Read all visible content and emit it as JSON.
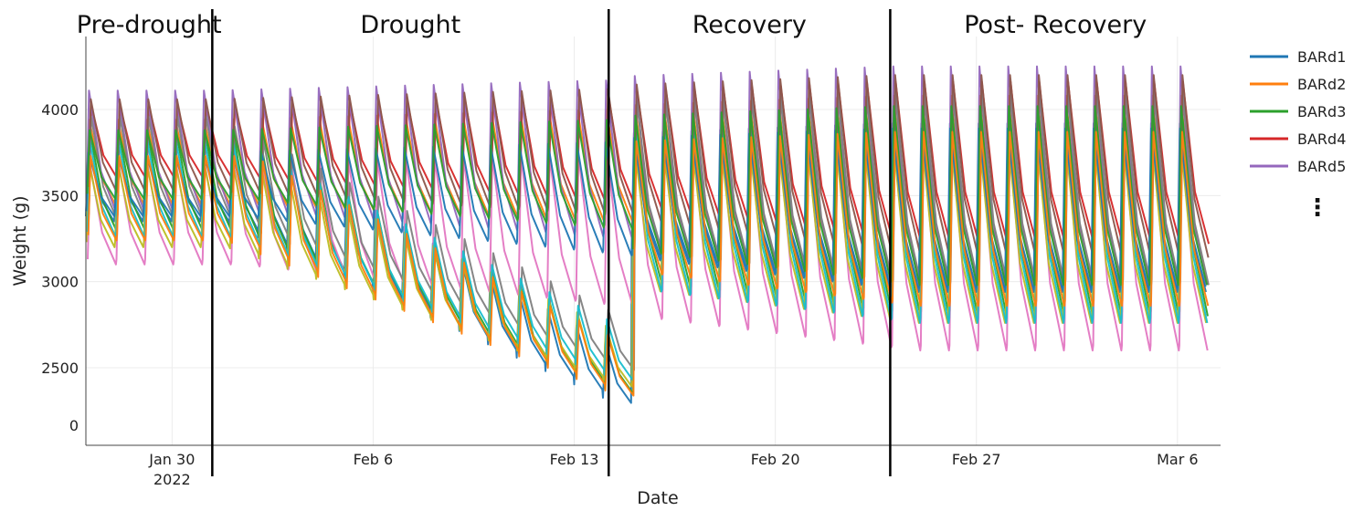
{
  "chart_data": {
    "type": "line",
    "xlabel": "Date",
    "ylabel": "Weight (g)",
    "yticks": [
      {
        "value": 0,
        "label": "0"
      },
      {
        "value": 2500,
        "label": "2500"
      },
      {
        "value": 3000,
        "label": "3000"
      },
      {
        "value": 3500,
        "label": "3500"
      },
      {
        "value": 4000,
        "label": "4000"
      }
    ],
    "xticks": [
      {
        "day": 30,
        "label": "Jan 30",
        "sublabel": "2022"
      },
      {
        "day": 37,
        "label": "Feb 6",
        "sublabel": ""
      },
      {
        "day": 44,
        "label": "Feb 13",
        "sublabel": ""
      },
      {
        "day": 51,
        "label": "Feb 20",
        "sublabel": ""
      },
      {
        "day": 58,
        "label": "Feb 27",
        "sublabel": ""
      },
      {
        "day": 65,
        "label": "Mar 6",
        "sublabel": ""
      }
    ],
    "x_range_days": [
      27.0,
      66.5
    ],
    "y_axis_note": "broken axis: 0 shown directly below 2500",
    "phases": [
      {
        "label": "Pre-drought",
        "start_day": 27.0,
        "end_day": 31.4
      },
      {
        "label": "Drought",
        "start_day": 31.4,
        "end_day": 45.2
      },
      {
        "label": "Recovery",
        "start_day": 45.2,
        "end_day": 55.0
      },
      {
        "label": "Post- Recovery",
        "start_day": 55.0,
        "end_day": 66.5
      }
    ],
    "legend": [
      {
        "name": "BARd1",
        "color": "#1f77b4"
      },
      {
        "name": "BARd2",
        "color": "#ff7f0e"
      },
      {
        "name": "BARd3",
        "color": "#2ca02c"
      },
      {
        "name": "BARd4",
        "color": "#d62728"
      },
      {
        "name": "BARd5",
        "color": "#9467bd"
      }
    ],
    "legend_more": "⋮",
    "series_overview": [
      {
        "name": "BARd1",
        "color": "#1f77b4",
        "drought_stressed": true,
        "peak_g": 3780,
        "trough_start_g": 3350,
        "trough_drought_end_g": 2280
      },
      {
        "name": "BARd2",
        "color": "#ff7f0e",
        "drought_stressed": false,
        "peak_g": 3940,
        "trough_start_g": 3450,
        "trough_drought_end_g": 3350
      },
      {
        "name": "BARd3",
        "color": "#2ca02c",
        "drought_stressed": true,
        "peak_g": 3860,
        "trough_start_g": 3300,
        "trough_drought_end_g": 2340
      },
      {
        "name": "BARd4",
        "color": "#d62728",
        "drought_stressed": false,
        "peak_g": 4020,
        "trough_start_g": 3600,
        "trough_drought_end_g": 3450
      },
      {
        "name": "BARd5",
        "color": "#9467bd",
        "drought_stressed": false,
        "peak_g": 4110,
        "trough_start_g": 3420,
        "trough_drought_end_g": 3250
      },
      {
        "name": "",
        "color": "#e377c2",
        "drought_stressed": false,
        "peak_g": 3680,
        "trough_start_g": 3100,
        "trough_drought_end_g": 2850
      },
      {
        "name": "",
        "color": "#7f7f7f",
        "drought_stressed": true,
        "peak_g": 3960,
        "trough_start_g": 3360,
        "trough_drought_end_g": 2480
      },
      {
        "name": "",
        "color": "#bcbd22",
        "drought_stressed": true,
        "peak_g": 3700,
        "trough_start_g": 3200,
        "trough_drought_end_g": 2380
      },
      {
        "name": "",
        "color": "#17becf",
        "drought_stressed": true,
        "peak_g": 3820,
        "trough_start_g": 3260,
        "trough_drought_end_g": 2420
      },
      {
        "name": "",
        "color": "#8c564b",
        "drought_stressed": false,
        "peak_g": 4060,
        "trough_start_g": 3520,
        "trough_drought_end_g": 3380
      },
      {
        "name": "",
        "color": "#1f77b4",
        "drought_stressed": false,
        "peak_g": 3750,
        "trough_start_g": 3380,
        "trough_drought_end_g": 3150
      },
      {
        "name": "",
        "color": "#2ca02c",
        "drought_stressed": false,
        "peak_g": 3880,
        "trough_start_g": 3480,
        "trough_drought_end_g": 3300
      },
      {
        "name": "",
        "color": "#ff7f0e",
        "drought_stressed": true,
        "peak_g": 3730,
        "trough_start_g": 3240,
        "trough_drought_end_g": 2330
      }
    ]
  }
}
